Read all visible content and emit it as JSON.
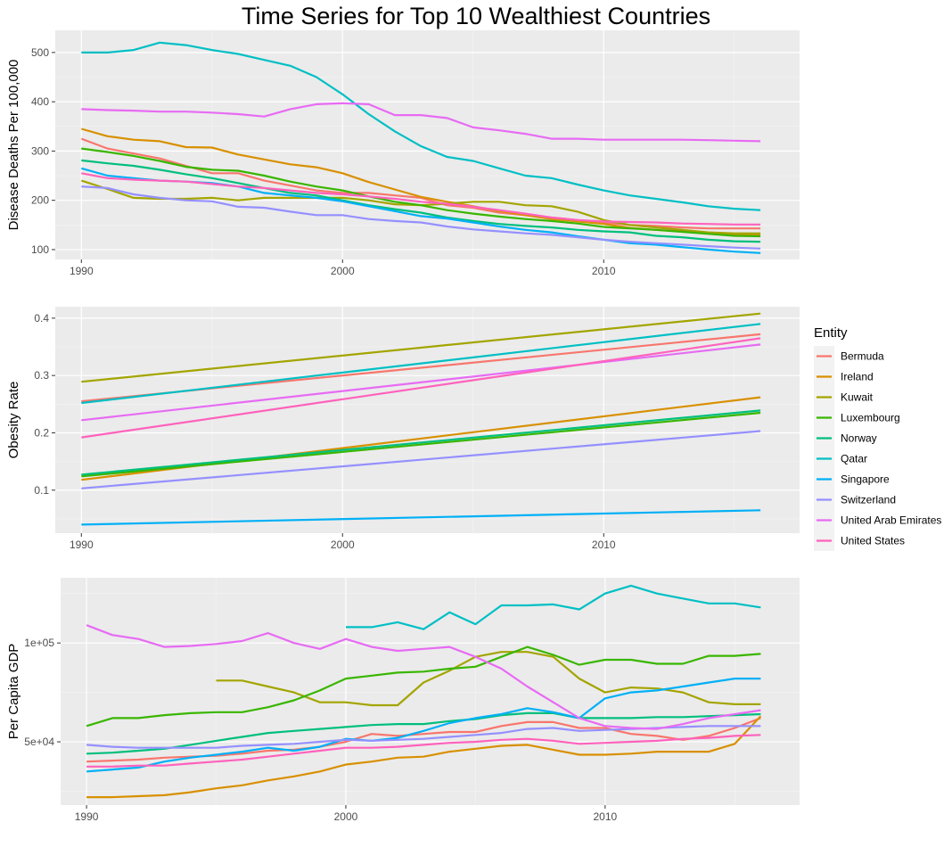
{
  "title": "Time Series for Top 10 Wealthiest Countries",
  "legend": {
    "title": "Entity",
    "placement": "right",
    "entries": [
      {
        "name": "Bermuda",
        "color": "#F8766D"
      },
      {
        "name": "Ireland",
        "color": "#D89000"
      },
      {
        "name": "Kuwait",
        "color": "#A3A500"
      },
      {
        "name": "Luxembourg",
        "color": "#39B600"
      },
      {
        "name": "Norway",
        "color": "#00BF7D"
      },
      {
        "name": "Qatar",
        "color": "#00BFC4"
      },
      {
        "name": "Singapore",
        "color": "#00B0F6"
      },
      {
        "name": "Switzerland",
        "color": "#9590FF"
      },
      {
        "name": "United Arab Emirates",
        "color": "#E76BF3"
      },
      {
        "name": "United States",
        "color": "#FF62BC"
      }
    ]
  },
  "chart_data": [
    {
      "type": "line",
      "xlabel": "",
      "ylabel": "Disease Deaths Per 100,000",
      "xlim": [
        1989,
        2017.5
      ],
      "ylim": [
        80,
        545
      ],
      "xticks": [
        1990,
        2000,
        2010
      ],
      "yticks": [
        100,
        200,
        300,
        400,
        500
      ],
      "grid": true,
      "x": [
        1990,
        1991,
        1992,
        1993,
        1994,
        1995,
        1996,
        1997,
        1998,
        1999,
        2000,
        2001,
        2002,
        2003,
        2004,
        2005,
        2006,
        2007,
        2008,
        2009,
        2010,
        2011,
        2012,
        2013,
        2014,
        2015,
        2016
      ],
      "series": [
        {
          "name": "Bermuda",
          "values": [
            325,
            305,
            295,
            285,
            270,
            255,
            255,
            240,
            230,
            220,
            215,
            215,
            210,
            205,
            190,
            185,
            175,
            170,
            165,
            160,
            155,
            150,
            148,
            145,
            143,
            143,
            143
          ]
        },
        {
          "name": "Ireland",
          "values": [
            345,
            330,
            323,
            320,
            308,
            307,
            293,
            283,
            273,
            267,
            255,
            237,
            222,
            207,
            197,
            188,
            178,
            170,
            162,
            157,
            152,
            144,
            140,
            137,
            133,
            130,
            130
          ]
        },
        {
          "name": "Kuwait",
          "values": [
            240,
            223,
            205,
            203,
            203,
            205,
            200,
            205,
            205,
            205,
            205,
            200,
            192,
            190,
            193,
            197,
            197,
            190,
            188,
            177,
            160,
            150,
            145,
            140,
            135,
            133,
            133
          ]
        },
        {
          "name": "Luxembourg",
          "values": [
            305,
            298,
            290,
            280,
            268,
            262,
            260,
            250,
            238,
            228,
            220,
            208,
            197,
            190,
            180,
            173,
            167,
            162,
            158,
            153,
            146,
            143,
            140,
            136,
            132,
            128,
            127
          ]
        },
        {
          "name": "Norway",
          "values": [
            281,
            275,
            270,
            262,
            253,
            245,
            235,
            225,
            215,
            210,
            200,
            190,
            182,
            175,
            165,
            158,
            152,
            148,
            145,
            140,
            137,
            135,
            128,
            125,
            120,
            117,
            116
          ]
        },
        {
          "name": "Qatar",
          "values": [
            500,
            500,
            505,
            520,
            515,
            505,
            497,
            485,
            473,
            450,
            415,
            375,
            340,
            310,
            288,
            280,
            265,
            250,
            245,
            232,
            220,
            210,
            203,
            196,
            188,
            183,
            180
          ]
        },
        {
          "name": "Singapore",
          "values": [
            265,
            250,
            245,
            240,
            238,
            235,
            228,
            215,
            210,
            205,
            198,
            188,
            178,
            168,
            163,
            155,
            147,
            140,
            135,
            127,
            120,
            113,
            110,
            105,
            100,
            96,
            93
          ]
        },
        {
          "name": "Switzerland",
          "values": [
            228,
            225,
            212,
            205,
            200,
            198,
            187,
            185,
            177,
            170,
            170,
            162,
            158,
            155,
            147,
            141,
            137,
            133,
            130,
            125,
            120,
            116,
            113,
            110,
            107,
            104,
            102
          ]
        },
        {
          "name": "United Arab Emirates",
          "values": [
            385,
            383,
            382,
            380,
            380,
            378,
            375,
            370,
            385,
            395,
            397,
            395,
            373,
            373,
            367,
            348,
            342,
            335,
            325,
            325,
            323,
            323,
            323,
            323,
            322,
            321,
            320
          ]
        },
        {
          "name": "United States",
          "values": [
            255,
            245,
            242,
            240,
            238,
            233,
            228,
            225,
            220,
            215,
            212,
            208,
            203,
            197,
            193,
            187,
            180,
            173,
            165,
            160,
            157,
            156,
            155,
            153,
            152,
            151,
            151
          ]
        }
      ]
    },
    {
      "type": "line",
      "xlabel": "",
      "ylabel": "Obesity Rate",
      "xlim": [
        1989,
        2017.5
      ],
      "ylim": [
        0.025,
        0.42
      ],
      "xticks": [
        1990,
        2000,
        2010
      ],
      "yticks": [
        0.1,
        0.2,
        0.3,
        0.4
      ],
      "grid": true,
      "x": [
        1990,
        2016
      ],
      "series": [
        {
          "name": "Bermuda",
          "values": [
            0.255,
            0.372
          ]
        },
        {
          "name": "Ireland",
          "values": [
            0.118,
            0.262
          ]
        },
        {
          "name": "Kuwait",
          "values": [
            0.289,
            0.408
          ]
        },
        {
          "name": "Luxembourg",
          "values": [
            0.124,
            0.235
          ]
        },
        {
          "name": "Norway",
          "values": [
            0.127,
            0.239
          ]
        },
        {
          "name": "Qatar",
          "values": [
            0.252,
            0.39
          ]
        },
        {
          "name": "Singapore",
          "values": [
            0.04,
            0.065
          ]
        },
        {
          "name": "Switzerland",
          "values": [
            0.103,
            0.203
          ]
        },
        {
          "name": "United Arab Emirates",
          "values": [
            0.222,
            0.354
          ]
        },
        {
          "name": "United States",
          "values": [
            0.192,
            0.365
          ]
        }
      ]
    },
    {
      "type": "line",
      "xlabel": "",
      "ylabel": "Per Capita GDP",
      "xlim": [
        1989,
        2017.5
      ],
      "ylim": [
        18000,
        133000
      ],
      "xticks": [
        1990,
        2000,
        2010
      ],
      "yticks": [
        50000,
        100000
      ],
      "yticklabels": [
        "5e+04",
        "1e+05"
      ],
      "grid": true,
      "x": [
        1990,
        1991,
        1992,
        1993,
        1994,
        1995,
        1996,
        1997,
        1998,
        1999,
        2000,
        2001,
        2002,
        2003,
        2004,
        2005,
        2006,
        2007,
        2008,
        2009,
        2010,
        2011,
        2012,
        2013,
        2014,
        2015,
        2016
      ],
      "series": [
        {
          "name": "Bermuda",
          "values": [
            40000,
            40500,
            41000,
            42000,
            42500,
            43000,
            44000,
            45500,
            46000,
            47500,
            50000,
            54000,
            53000,
            54000,
            55000,
            55000,
            58000,
            60000,
            60000,
            57000,
            57000,
            54000,
            53000,
            51000,
            53000,
            57000,
            62000
          ]
        },
        {
          "name": "Ireland",
          "values": [
            22000,
            22000,
            22500,
            23000,
            24500,
            26500,
            28000,
            30500,
            32500,
            35000,
            38500,
            40000,
            42000,
            42500,
            45000,
            46500,
            48000,
            48500,
            46000,
            43500,
            43500,
            44000,
            45000,
            45000,
            45000,
            49000,
            63000
          ]
        },
        {
          "name": "Kuwait",
          "values": [
            null,
            null,
            null,
            null,
            null,
            81000,
            81000,
            78000,
            75000,
            70000,
            70000,
            68500,
            68500,
            80000,
            86000,
            93000,
            95500,
            95500,
            93000,
            82000,
            75000,
            77500,
            77000,
            75000,
            70000,
            69000,
            69000
          ]
        },
        {
          "name": "Luxembourg",
          "values": [
            58000,
            62000,
            62000,
            63500,
            64500,
            65000,
            65000,
            67500,
            71000,
            76000,
            82000,
            83500,
            85000,
            85500,
            87000,
            88000,
            93000,
            98000,
            94000,
            89000,
            91500,
            91500,
            89500,
            89500,
            93500,
            93500,
            94500
          ]
        },
        {
          "name": "Norway",
          "values": [
            44000,
            44500,
            45500,
            46500,
            48500,
            50500,
            52500,
            54500,
            55500,
            56500,
            57500,
            58500,
            59000,
            59000,
            60500,
            61500,
            63500,
            64500,
            64500,
            62000,
            62000,
            62000,
            62500,
            62500,
            63000,
            63500,
            64000
          ]
        },
        {
          "name": "Qatar",
          "values": [
            null,
            null,
            null,
            null,
            null,
            null,
            null,
            null,
            null,
            null,
            108000,
            108000,
            110500,
            107000,
            115500,
            109500,
            119000,
            119000,
            119500,
            117000,
            125000,
            129000,
            125000,
            122500,
            120000,
            120000,
            118000
          ]
        },
        {
          "name": "Singapore",
          "values": [
            35000,
            36000,
            37000,
            40000,
            42000,
            43500,
            45000,
            47000,
            45500,
            47500,
            51500,
            50500,
            52000,
            55500,
            59500,
            62000,
            64000,
            67000,
            65000,
            62000,
            72000,
            75000,
            76000,
            78000,
            80000,
            82000,
            82000
          ]
        },
        {
          "name": "Switzerland",
          "values": [
            48500,
            47500,
            47000,
            47000,
            47000,
            47000,
            48000,
            48500,
            49000,
            50000,
            51000,
            50500,
            51000,
            51500,
            52500,
            53500,
            54500,
            56500,
            57000,
            55500,
            56000,
            56500,
            57000,
            57500,
            58000,
            58000,
            58000
          ]
        },
        {
          "name": "United Arab Emirates",
          "values": [
            109000,
            104000,
            102000,
            98000,
            98500,
            99500,
            101000,
            105000,
            100000,
            97000,
            102000,
            98000,
            96000,
            97000,
            98000,
            93000,
            87000,
            78000,
            70000,
            62000,
            58000,
            57000,
            56500,
            59000,
            62000,
            64000,
            66000
          ]
        },
        {
          "name": "United States",
          "values": [
            37500,
            37500,
            38000,
            38000,
            39000,
            40000,
            41000,
            42500,
            44000,
            45500,
            47000,
            47000,
            47500,
            48500,
            49500,
            50000,
            51000,
            51500,
            50500,
            49000,
            49500,
            50000,
            50500,
            51500,
            52000,
            53000,
            53500
          ]
        }
      ]
    }
  ]
}
